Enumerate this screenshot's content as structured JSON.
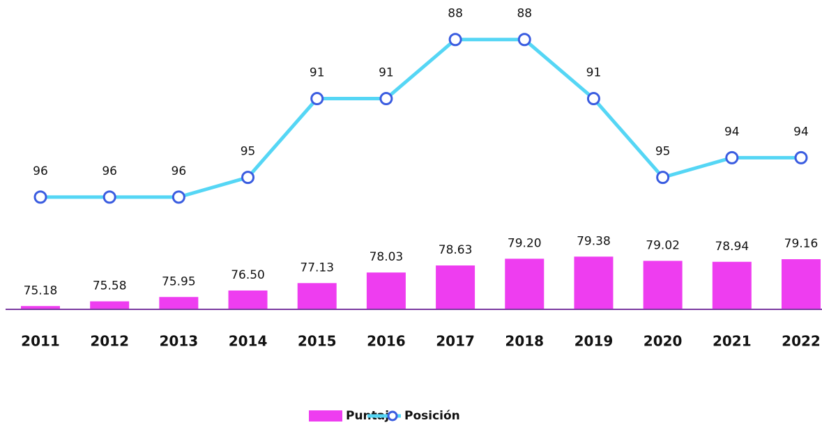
{
  "chart_data": {
    "type": "bar_line",
    "categories": [
      "2011",
      "2012",
      "2013",
      "2014",
      "2015",
      "2016",
      "2017",
      "2018",
      "2019",
      "2020",
      "2021",
      "2022"
    ],
    "series": [
      {
        "name": "Puntaje",
        "type": "bar",
        "color": "#ee3df0",
        "values": [
          75.18,
          75.58,
          75.95,
          76.5,
          77.13,
          78.03,
          78.63,
          79.2,
          79.38,
          79.02,
          78.94,
          79.16
        ],
        "value_labels": [
          "75.18",
          "75.58",
          "75.95",
          "76.50",
          "77.13",
          "78.03",
          "78.63",
          "79.20",
          "79.38",
          "79.02",
          "78.94",
          "79.16"
        ]
      },
      {
        "name": "Posición",
        "type": "line",
        "axis": "y2",
        "color": "#55d6f5",
        "marker_color": "#3a5ce0",
        "values": [
          96,
          96,
          96,
          95,
          91,
          91,
          88,
          88,
          91,
          95,
          94,
          94
        ]
      }
    ],
    "ylim": [
      74.9,
      100
    ],
    "y2lim": [
      101.7,
      86.7
    ],
    "legend": "bottom",
    "axis_color": "#7a3aa0"
  }
}
